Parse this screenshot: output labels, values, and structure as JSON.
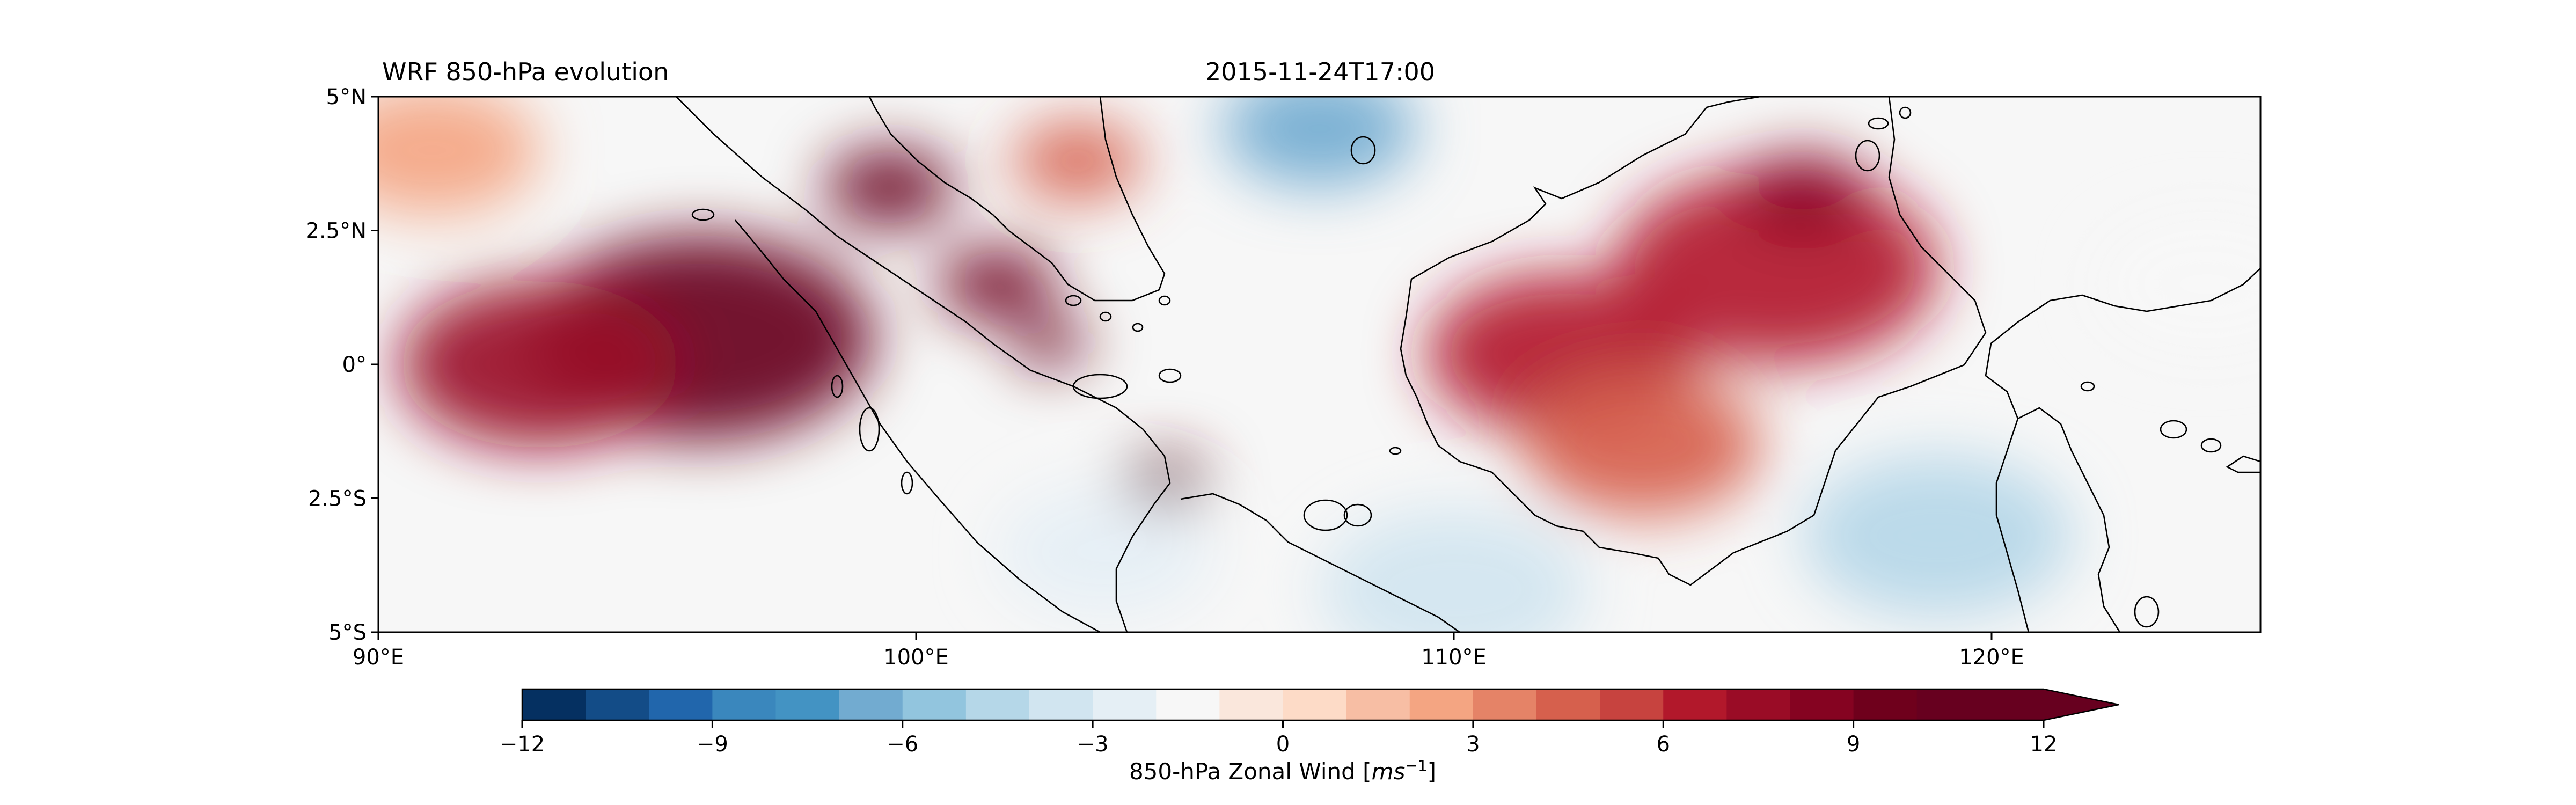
{
  "title_left": "WRF 850-hPa evolution",
  "title_center": "2015-11-24T17:00",
  "map": {
    "lon_range": [
      90,
      125
    ],
    "lat_range": [
      -5,
      5
    ],
    "x_ticks": [
      {
        "value": 90,
        "label": "90°E"
      },
      {
        "value": 100,
        "label": "100°E"
      },
      {
        "value": 110,
        "label": "110°E"
      },
      {
        "value": 120,
        "label": "120°E"
      }
    ],
    "y_ticks": [
      {
        "value": 5,
        "label": "5°N"
      },
      {
        "value": 2.5,
        "label": "2.5°N"
      },
      {
        "value": 0,
        "label": "0°"
      },
      {
        "value": -2.5,
        "label": "2.5°S"
      },
      {
        "value": -5,
        "label": "5°S"
      }
    ],
    "field": "850-hPa zonal wind",
    "coastline_color": "#000000"
  },
  "colorbar": {
    "label_prefix": "850-hPa Zonal Wind [",
    "label_unit_base": "ms",
    "label_unit_exp": "−1",
    "label_suffix": "]",
    "min": -12,
    "max": 12,
    "step": 1,
    "extend": "max",
    "ticks": [
      {
        "value": -12,
        "label": "−12"
      },
      {
        "value": -9,
        "label": "−9"
      },
      {
        "value": -6,
        "label": "−6"
      },
      {
        "value": -3,
        "label": "−3"
      },
      {
        "value": 0,
        "label": "0"
      },
      {
        "value": 3,
        "label": "3"
      },
      {
        "value": 6,
        "label": "6"
      },
      {
        "value": 9,
        "label": "9"
      },
      {
        "value": 12,
        "label": "12"
      }
    ],
    "colors": [
      "#053061",
      "#134c87",
      "#2166ac",
      "#3a87bd",
      "#4393c3",
      "#72abd0",
      "#92c5de",
      "#b5d7e8",
      "#d1e5f0",
      "#e5eff5",
      "#f7f7f7",
      "#fae7dc",
      "#fddbc7",
      "#f7bea4",
      "#f4a582",
      "#e58367",
      "#d6604d",
      "#c7433f",
      "#b2182b",
      "#9a0c26",
      "#850321",
      "#6f001c",
      "#67001f",
      "#67001f"
    ],
    "extend_color": "#67001f"
  },
  "wind_features": [
    {
      "lon": 96,
      "lat": 0.5,
      "u": 10,
      "r": 3.2
    },
    {
      "lon": 93,
      "lat": 0.0,
      "u": 7,
      "r": 2.6
    },
    {
      "lon": 99.5,
      "lat": 3.3,
      "u": 11,
      "r": 1.2
    },
    {
      "lon": 101.5,
      "lat": 1.5,
      "u": 9,
      "r": 1.1
    },
    {
      "lon": 102.5,
      "lat": 0.4,
      "u": 10,
      "r": 0.7
    },
    {
      "lon": 104.6,
      "lat": -2.2,
      "u": 9,
      "r": 0.8
    },
    {
      "lon": 112,
      "lat": 0.2,
      "u": 6,
      "r": 2.5
    },
    {
      "lon": 116,
      "lat": 1.8,
      "u": 6,
      "r": 3.0
    },
    {
      "lon": 116.5,
      "lat": 3.2,
      "u": 8,
      "r": 1.2
    },
    {
      "lon": 113.5,
      "lat": -1.5,
      "u": 4,
      "r": 2.2
    },
    {
      "lon": 103,
      "lat": 3.8,
      "u": 4,
      "r": 1.2
    },
    {
      "lon": 107.5,
      "lat": 4.4,
      "u": -7,
      "r": 1.8
    },
    {
      "lon": 103.5,
      "lat": -3.5,
      "u": -3,
      "r": 2.0
    },
    {
      "lon": 110,
      "lat": -4.2,
      "u": -4,
      "r": 2.5
    },
    {
      "lon": 119,
      "lat": -3.2,
      "u": -5,
      "r": 2.5
    },
    {
      "lon": 124,
      "lat": 1.5,
      "u": -2,
      "r": 2.0
    },
    {
      "lon": 91,
      "lat": 4.0,
      "u": 2,
      "r": 2.0
    }
  ]
}
